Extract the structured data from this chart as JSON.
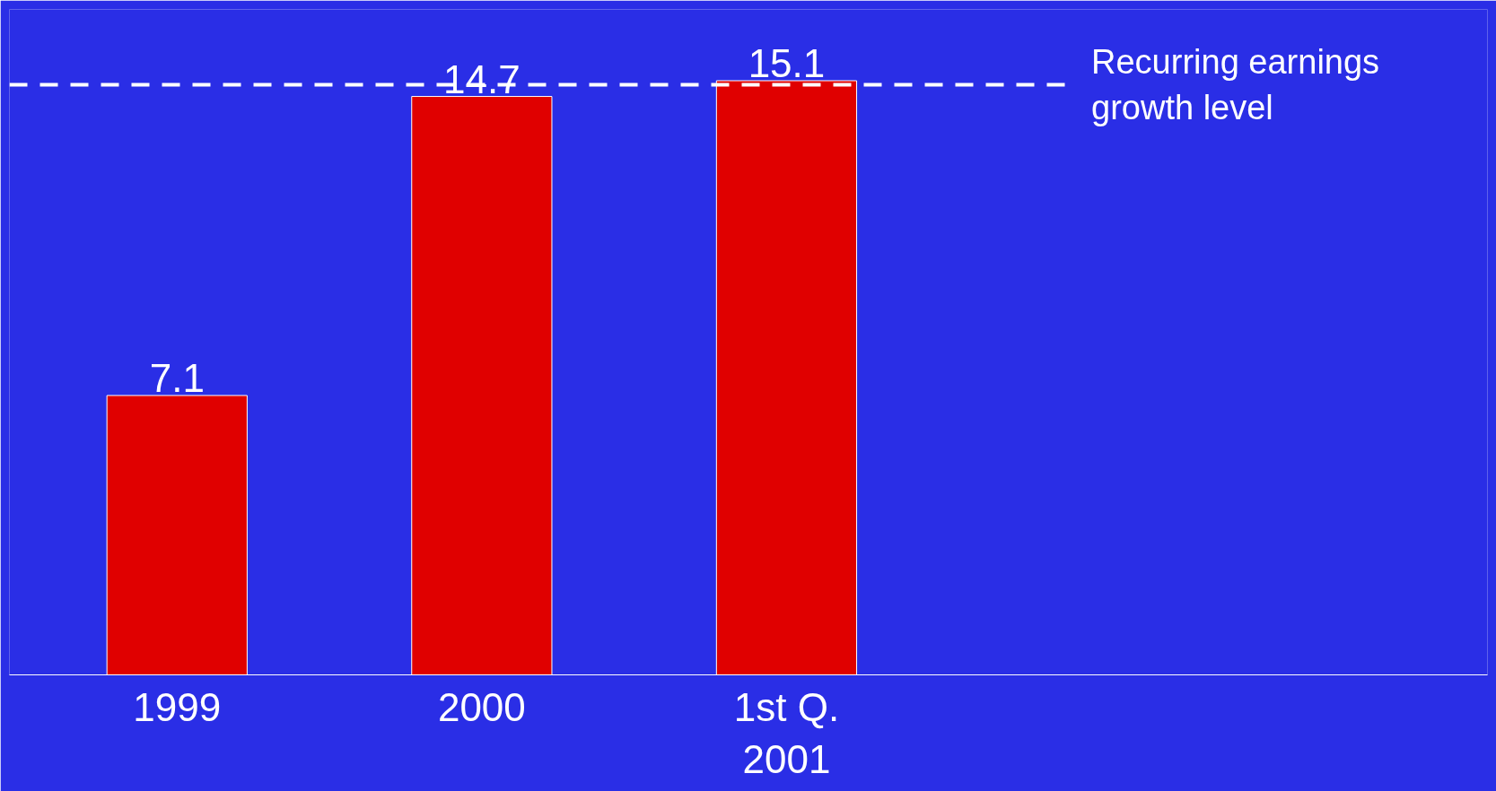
{
  "chart_data": {
    "type": "bar",
    "categories": [
      "1999",
      "2000",
      "1st Q.\n2001"
    ],
    "values": [
      7.1,
      14.7,
      15.1
    ],
    "color": "#e00000",
    "data_labels": true,
    "ref_lines": [
      {
        "axis": "y",
        "value": 15.0,
        "label": "Recurring earnings\ngrowth level",
        "color": "#ffffff",
        "line_style": "dashed"
      }
    ],
    "grid": false
  }
}
